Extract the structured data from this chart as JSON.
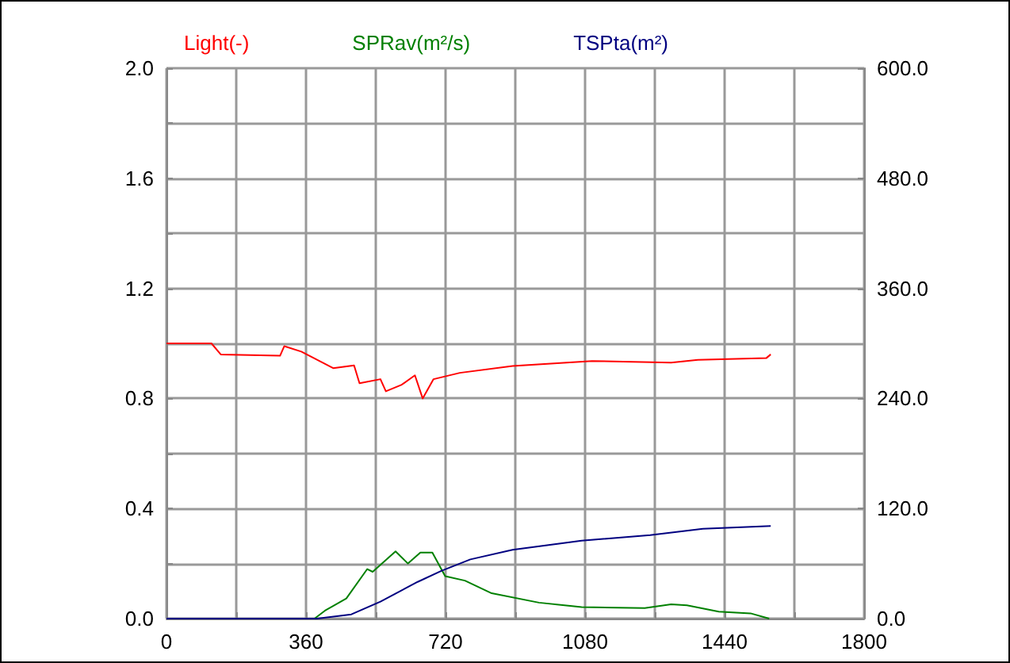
{
  "chart_data": {
    "type": "line",
    "legend": "top",
    "grid": true,
    "marker": "none",
    "line_style": "solid",
    "xlim": [
      0,
      1800
    ],
    "xticks": [
      0,
      {
        "value": 180,
        "label": null
      },
      360,
      {
        "value": 540,
        "label": null
      },
      720,
      {
        "value": 900,
        "label": null
      },
      1080,
      {
        "value": 1260,
        "label": null
      },
      1440,
      {
        "value": 1620,
        "label": null
      },
      1800
    ],
    "ylim": [
      0,
      2.0
    ],
    "yticks": [
      {
        "value": 0,
        "label": "0.0"
      },
      {
        "value": 0.2,
        "label": null
      },
      0.4,
      {
        "value": 0.6,
        "label": null
      },
      0.8,
      {
        "value": 1.0,
        "label": null
      },
      1.2,
      {
        "value": 1.4,
        "label": null
      },
      1.6,
      {
        "value": 1.8,
        "label": null
      },
      {
        "value": 2.0,
        "label": "2.0"
      }
    ],
    "y2lim": [
      0,
      600
    ],
    "y2ticks": [
      {
        "value": 0,
        "label": "0.0"
      },
      {
        "value": 120,
        "label": "120.0"
      },
      {
        "value": 240,
        "label": "240.0"
      },
      {
        "value": 360,
        "label": "360.0"
      },
      {
        "value": 480,
        "label": "480.0"
      },
      {
        "value": 600,
        "label": "600.0"
      }
    ],
    "series": [
      {
        "name": "Light(-)",
        "color": "#ff0000",
        "x": [
          0,
          116,
          140,
          293,
          304,
          348,
          430,
          484,
          498,
          552,
          566,
          607,
          641,
          661,
          689,
          757,
          893,
          1098,
          1302,
          1371,
          1548,
          1559
        ],
        "values": [
          1.0,
          1.0,
          0.96,
          0.955,
          0.99,
          0.97,
          0.91,
          0.92,
          0.855,
          0.87,
          0.826,
          0.85,
          0.884,
          0.8,
          0.87,
          0.893,
          0.918,
          0.936,
          0.93,
          0.94,
          0.947,
          0.96
        ]
      },
      {
        "name": "SPRav(m²/s)",
        "color": "#008000",
        "x": [
          0,
          382,
          409,
          464,
          518,
          532,
          591,
          623,
          655,
          686,
          719,
          770,
          839,
          961,
          1071,
          1234,
          1302,
          1343,
          1425,
          1507,
          1555
        ],
        "values": [
          0,
          0,
          0.029,
          0.073,
          0.18,
          0.17,
          0.244,
          0.2,
          0.24,
          0.24,
          0.154,
          0.138,
          0.092,
          0.058,
          0.042,
          0.038,
          0.052,
          0.048,
          0.025,
          0.019,
          0
        ]
      },
      {
        "name": "TSPta(m²)",
        "color": "#000080",
        "axis": "y2",
        "x": [
          0,
          389,
          477,
          552,
          648,
          709,
          784,
          893,
          1071,
          1248,
          1384,
          1559
        ],
        "values": [
          0,
          0,
          4.6,
          18.5,
          40,
          52,
          64.5,
          75,
          85,
          91,
          98,
          101
        ]
      }
    ]
  }
}
